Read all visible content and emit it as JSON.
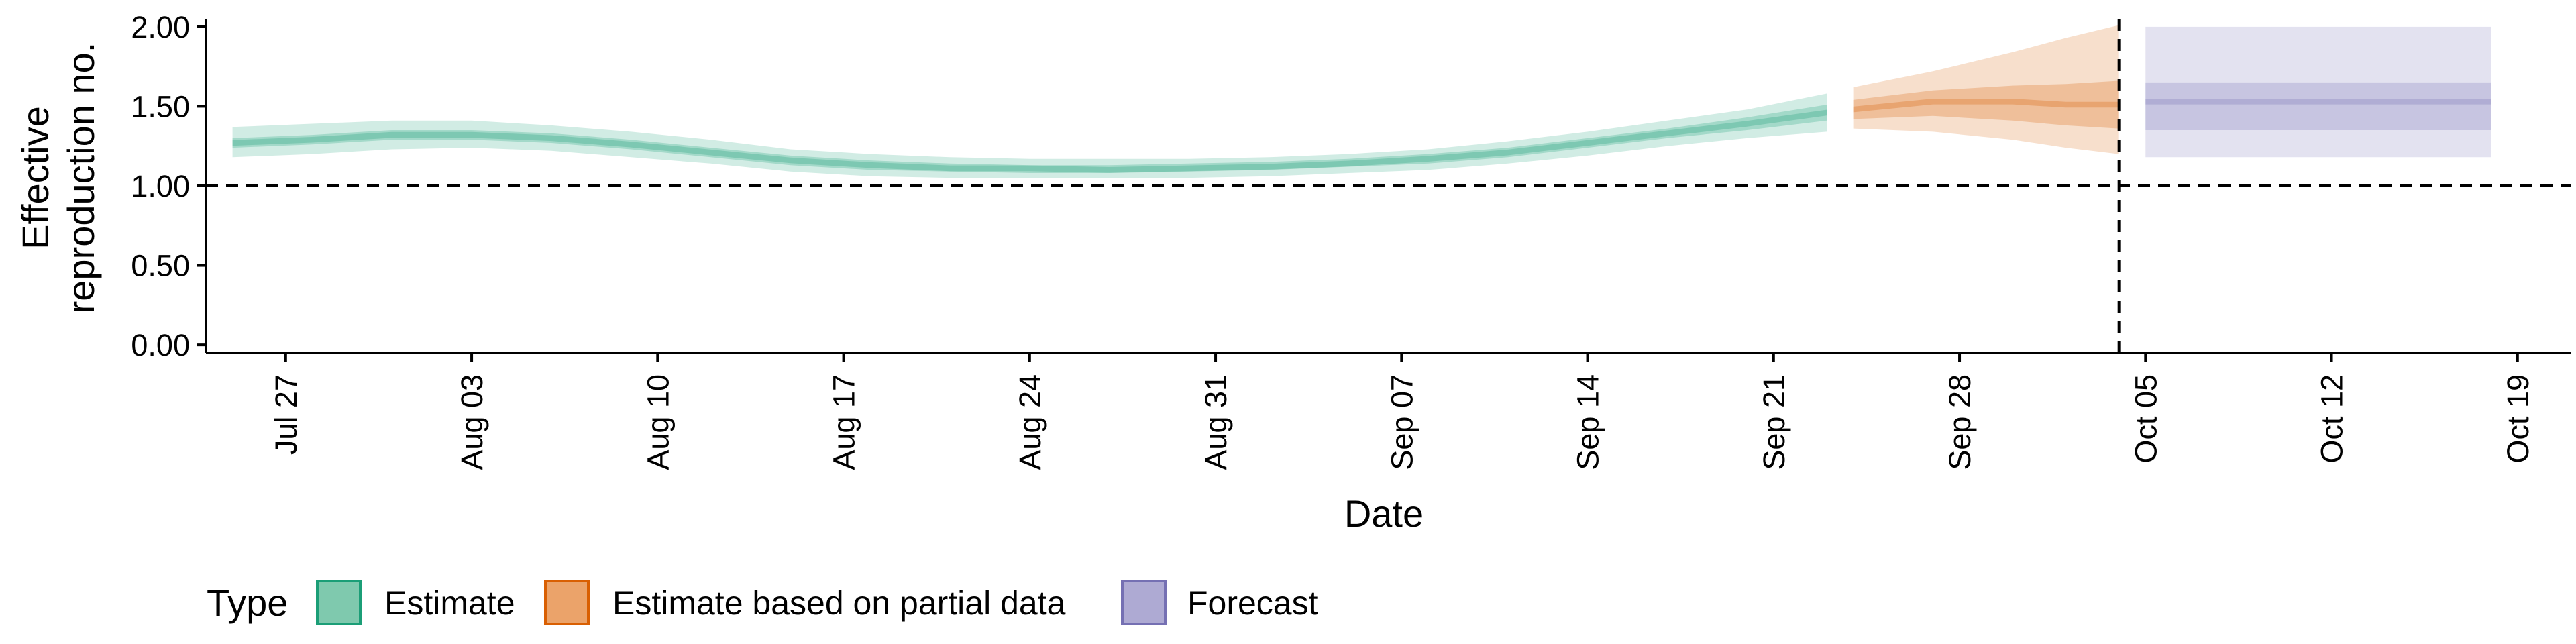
{
  "chart_data": {
    "type": "area",
    "xlabel": "Date",
    "ylabel_lines": [
      "Effective",
      "reproduction no."
    ],
    "x_range": [
      "2020-07-24",
      "2020-10-21"
    ],
    "ylim": [
      -0.05,
      2.05
    ],
    "y_ticks": [
      {
        "value": 0.0,
        "label": "0.00"
      },
      {
        "value": 0.5,
        "label": "0.50"
      },
      {
        "value": 1.0,
        "label": "1.00"
      },
      {
        "value": 1.5,
        "label": "1.50"
      },
      {
        "value": 2.0,
        "label": "2.00"
      }
    ],
    "x_ticks": [
      {
        "date": "2020-07-27",
        "label": "Jul 27"
      },
      {
        "date": "2020-08-03",
        "label": "Aug 03"
      },
      {
        "date": "2020-08-10",
        "label": "Aug 10"
      },
      {
        "date": "2020-08-17",
        "label": "Aug 17"
      },
      {
        "date": "2020-08-24",
        "label": "Aug 24"
      },
      {
        "date": "2020-08-31",
        "label": "Aug 31"
      },
      {
        "date": "2020-09-07",
        "label": "Sep 07"
      },
      {
        "date": "2020-09-14",
        "label": "Sep 14"
      },
      {
        "date": "2020-09-21",
        "label": "Sep 21"
      },
      {
        "date": "2020-09-28",
        "label": "Sep 28"
      },
      {
        "date": "2020-10-05",
        "label": "Oct 05"
      },
      {
        "date": "2020-10-12",
        "label": "Oct 12"
      },
      {
        "date": "2020-10-19",
        "label": "Oct 19"
      }
    ],
    "reference_lines": {
      "hline_y": 1.0,
      "vline_date": "2020-10-04"
    },
    "grid": false,
    "legend": {
      "title": "Type",
      "position": "bottom-left",
      "entries": [
        {
          "label": "Estimate",
          "fill": "#7fc9ae",
          "border": "#1b9e77"
        },
        {
          "label": "Estimate based on partial data",
          "fill": "#eba36a",
          "border": "#d95f02"
        },
        {
          "label": "Forecast",
          "fill": "#aeaad3",
          "border": "#7570b3"
        }
      ]
    },
    "series": [
      {
        "type_label": "Estimate",
        "color": "#1b9e77",
        "points": [
          {
            "date": "2020-07-25",
            "median": 1.27,
            "inner": [
              1.24,
              1.3
            ],
            "outer": [
              1.18,
              1.37
            ]
          },
          {
            "date": "2020-07-28",
            "median": 1.29,
            "inner": [
              1.26,
              1.32
            ],
            "outer": [
              1.2,
              1.39
            ]
          },
          {
            "date": "2020-07-31",
            "median": 1.32,
            "inner": [
              1.29,
              1.35
            ],
            "outer": [
              1.23,
              1.41
            ]
          },
          {
            "date": "2020-08-03",
            "median": 1.32,
            "inner": [
              1.29,
              1.35
            ],
            "outer": [
              1.24,
              1.41
            ]
          },
          {
            "date": "2020-08-06",
            "median": 1.3,
            "inner": [
              1.27,
              1.33
            ],
            "outer": [
              1.22,
              1.38
            ]
          },
          {
            "date": "2020-08-09",
            "median": 1.26,
            "inner": [
              1.23,
              1.29
            ],
            "outer": [
              1.18,
              1.34
            ]
          },
          {
            "date": "2020-08-12",
            "median": 1.21,
            "inner": [
              1.18,
              1.24
            ],
            "outer": [
              1.14,
              1.29
            ]
          },
          {
            "date": "2020-08-15",
            "median": 1.16,
            "inner": [
              1.13,
              1.19
            ],
            "outer": [
              1.09,
              1.23
            ]
          },
          {
            "date": "2020-08-18",
            "median": 1.13,
            "inner": [
              1.1,
              1.16
            ],
            "outer": [
              1.06,
              1.2
            ]
          },
          {
            "date": "2020-08-21",
            "median": 1.11,
            "inner": [
              1.09,
              1.14
            ],
            "outer": [
              1.05,
              1.18
            ]
          },
          {
            "date": "2020-08-24",
            "median": 1.11,
            "inner": [
              1.08,
              1.13
            ],
            "outer": [
              1.05,
              1.17
            ]
          },
          {
            "date": "2020-08-27",
            "median": 1.1,
            "inner": [
              1.08,
              1.13
            ],
            "outer": [
              1.05,
              1.17
            ]
          },
          {
            "date": "2020-08-30",
            "median": 1.11,
            "inner": [
              1.09,
              1.14
            ],
            "outer": [
              1.05,
              1.17
            ]
          },
          {
            "date": "2020-09-02",
            "median": 1.12,
            "inner": [
              1.1,
              1.15
            ],
            "outer": [
              1.06,
              1.18
            ]
          },
          {
            "date": "2020-09-05",
            "median": 1.14,
            "inner": [
              1.12,
              1.17
            ],
            "outer": [
              1.08,
              1.2
            ]
          },
          {
            "date": "2020-09-08",
            "median": 1.17,
            "inner": [
              1.14,
              1.2
            ],
            "outer": [
              1.1,
              1.23
            ]
          },
          {
            "date": "2020-09-11",
            "median": 1.21,
            "inner": [
              1.18,
              1.24
            ],
            "outer": [
              1.14,
              1.28
            ]
          },
          {
            "date": "2020-09-14",
            "median": 1.27,
            "inner": [
              1.24,
              1.3
            ],
            "outer": [
              1.19,
              1.34
            ]
          },
          {
            "date": "2020-09-17",
            "median": 1.33,
            "inner": [
              1.3,
              1.36
            ],
            "outer": [
              1.25,
              1.41
            ]
          },
          {
            "date": "2020-09-20",
            "median": 1.39,
            "inner": [
              1.35,
              1.43
            ],
            "outer": [
              1.3,
              1.48
            ]
          },
          {
            "date": "2020-09-23",
            "median": 1.46,
            "inner": [
              1.41,
              1.51
            ],
            "outer": [
              1.34,
              1.58
            ]
          }
        ]
      },
      {
        "type_label": "Estimate based on partial data",
        "color": "#d95f02",
        "points": [
          {
            "date": "2020-09-24",
            "median": 1.48,
            "inner": [
              1.42,
              1.54
            ],
            "outer": [
              1.36,
              1.62
            ]
          },
          {
            "date": "2020-09-27",
            "median": 1.53,
            "inner": [
              1.44,
              1.6
            ],
            "outer": [
              1.34,
              1.72
            ]
          },
          {
            "date": "2020-09-30",
            "median": 1.53,
            "inner": [
              1.41,
              1.63
            ],
            "outer": [
              1.29,
              1.84
            ]
          },
          {
            "date": "2020-10-02",
            "median": 1.51,
            "inner": [
              1.38,
              1.64
            ],
            "outer": [
              1.24,
              1.93
            ]
          },
          {
            "date": "2020-10-04",
            "median": 1.51,
            "inner": [
              1.36,
              1.66
            ],
            "outer": [
              1.2,
              2.01
            ]
          }
        ]
      },
      {
        "type_label": "Forecast",
        "color": "#7570b3",
        "points": [
          {
            "date": "2020-10-05",
            "median": 1.53,
            "inner": [
              1.35,
              1.65
            ],
            "outer": [
              1.18,
              2.0
            ]
          },
          {
            "date": "2020-10-18",
            "median": 1.53,
            "inner": [
              1.35,
              1.65
            ],
            "outer": [
              1.18,
              2.0
            ]
          }
        ]
      }
    ]
  }
}
